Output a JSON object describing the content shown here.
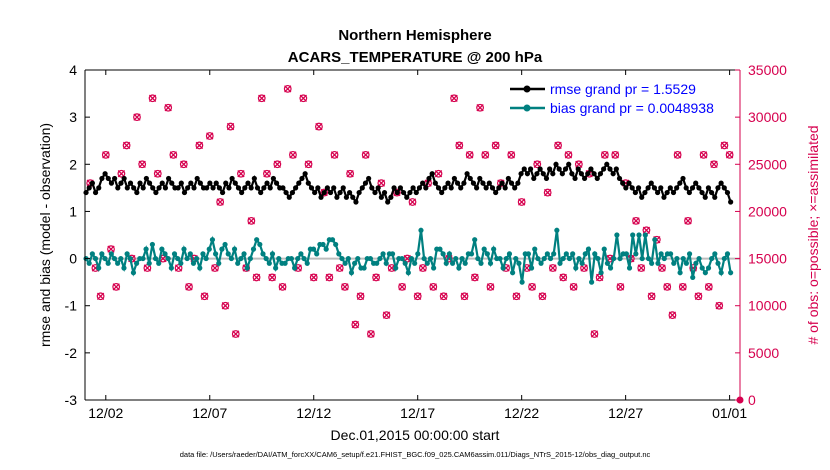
{
  "chart_data": {
    "type": "line",
    "title": "Northern Hemisphere",
    "subtitle": "ACARS_TEMPERATURE @ 200 hPa",
    "xlabel": "Dec.01,2015 00:00:00 start",
    "ylabel_left": "rmse and bias (model - observation)",
    "ylabel_right": "# of obs: o=possible; ×=assimilated",
    "footnote": "data file: /Users/raeder/DAI/ATM_forcXX/CAM6_setup/f.e21.FHIST_BGC.f09_025.CAM6assim.011/Diags_NTrS_2015-12/obs_diag_output.nc",
    "xlim": [
      0,
      31.5
    ],
    "ylim_left": [
      -3,
      4
    ],
    "ylim_right": [
      0,
      35000
    ],
    "x_ticks": [
      {
        "value": 1,
        "label": "12/02"
      },
      {
        "value": 6,
        "label": "12/07"
      },
      {
        "value": 11,
        "label": "12/12"
      },
      {
        "value": 16,
        "label": "12/17"
      },
      {
        "value": 21,
        "label": "12/22"
      },
      {
        "value": 26,
        "label": "12/27"
      },
      {
        "value": 31,
        "label": "01/01"
      }
    ],
    "y_ticks_left": [
      -3,
      -2,
      -1,
      0,
      1,
      2,
      3,
      4
    ],
    "y_tick_labels_left": [
      "-3",
      "-2",
      "-1",
      "0",
      "1",
      "2",
      "3",
      "4"
    ],
    "y_ticks_right": [
      0,
      5000,
      10000,
      15000,
      20000,
      25000,
      30000,
      35000
    ],
    "y_tick_labels_right": [
      "0",
      "5000",
      "10000",
      "15000",
      "20000",
      "25000",
      "30000",
      "35000"
    ],
    "colors": {
      "rmse": "#000000",
      "bias": "#008080",
      "obs": "#d6004e",
      "zero_line": "#bdbdbd"
    },
    "series": [
      {
        "name": "rmse grand pr = 1.5529",
        "axis": "left",
        "color": "#000000",
        "values": [
          1.4,
          1.5,
          1.6,
          1.4,
          1.5,
          1.7,
          1.8,
          1.7,
          1.6,
          1.7,
          1.5,
          1.6,
          1.7,
          1.5,
          1.6,
          1.5,
          1.4,
          1.6,
          1.5,
          1.7,
          1.6,
          1.5,
          1.4,
          1.5,
          1.6,
          1.5,
          1.7,
          1.6,
          1.5,
          1.5,
          1.6,
          1.4,
          1.5,
          1.6,
          1.5,
          1.7,
          1.6,
          1.5,
          1.5,
          1.6,
          1.5,
          1.6,
          1.5,
          1.4,
          1.6,
          1.5,
          1.7,
          1.6,
          1.5,
          1.4,
          1.5,
          1.6,
          1.5,
          1.7,
          1.5,
          1.4,
          1.5,
          1.6,
          1.5,
          1.7,
          1.6,
          1.5,
          1.5,
          1.4,
          1.3,
          1.4,
          1.5,
          1.6,
          1.7,
          1.8,
          1.6,
          1.5,
          1.4,
          1.5,
          1.3,
          1.4,
          1.5,
          1.4,
          1.5,
          1.3,
          1.4,
          1.5,
          1.3,
          1.4,
          1.3,
          1.2,
          1.4,
          1.5,
          1.6,
          1.7,
          1.5,
          1.4,
          1.5,
          1.3,
          1.4,
          1.2,
          1.3,
          1.5,
          1.4,
          1.5,
          1.4,
          1.3,
          1.4,
          1.5,
          1.4,
          1.5,
          1.6,
          1.5,
          1.7,
          1.8,
          1.6,
          1.5,
          1.4,
          1.5,
          1.6,
          1.5,
          1.7,
          1.6,
          1.5,
          1.6,
          1.8,
          1.7,
          1.6,
          1.5,
          1.7,
          1.6,
          1.5,
          1.6,
          1.5,
          1.4,
          1.5,
          1.6,
          1.5,
          1.7,
          1.6,
          1.5,
          1.6,
          1.8,
          1.9,
          1.8,
          1.9,
          1.7,
          1.8,
          1.9,
          1.8,
          1.7,
          1.9,
          1.8,
          2.0,
          1.9,
          1.8,
          1.9,
          2.0,
          1.8,
          1.7,
          1.9,
          1.8,
          1.7,
          1.8,
          1.9,
          1.8,
          1.7,
          1.8,
          1.9,
          2.0,
          1.9,
          1.8,
          1.9,
          1.7,
          1.6,
          1.5,
          1.6,
          1.5,
          1.4,
          1.5,
          1.3,
          1.4,
          1.5,
          1.6,
          1.5,
          1.4,
          1.5,
          1.3,
          1.4,
          1.5,
          1.4,
          1.5,
          1.6,
          1.7,
          1.5,
          1.4,
          1.5,
          1.6,
          1.5,
          1.4,
          1.3,
          1.5,
          1.4,
          1.3,
          1.5,
          1.6,
          1.5,
          1.4,
          1.2
        ]
      },
      {
        "name": "bias grand pr = 0.0048938",
        "axis": "left",
        "color": "#008080",
        "values": [
          0.0,
          -0.1,
          0.1,
          0.0,
          -0.2,
          0.1,
          0.0,
          -0.1,
          0.1,
          0.0,
          -0.1,
          0.0,
          -0.2,
          0.1,
          0.0,
          -0.3,
          -0.1,
          0.0,
          0.0,
          0.2,
          -0.1,
          0.3,
          0.0,
          -0.1,
          0.2,
          0.1,
          0.0,
          -0.2,
          0.1,
          0.0,
          -0.1,
          0.2,
          0.0,
          0.1,
          -0.1,
          0.0,
          -0.2,
          0.1,
          0.0,
          0.2,
          0.4,
          0.1,
          -0.1,
          0.2,
          0.3,
          0.1,
          0.0,
          0.2,
          -0.1,
          0.0,
          0.1,
          -0.2,
          0.0,
          0.2,
          0.4,
          0.3,
          0.1,
          0.0,
          -0.1,
          0.1,
          -0.2,
          0.0,
          -0.1,
          -0.1,
          0.0,
          0.0,
          -0.2,
          0.0,
          0.1,
          0.0,
          -0.1,
          0.2,
          0.2,
          0.1,
          0.3,
          0.3,
          0.2,
          0.4,
          0.4,
          0.3,
          0.1,
          0.0,
          -0.1,
          0.0,
          -0.3,
          -0.1,
          0.0,
          -0.2,
          -0.2,
          0.0,
          0.0,
          -0.1,
          -0.1,
          0.0,
          0.1,
          -0.1,
          0.1,
          0.1,
          -0.2,
          0.0,
          0.0,
          -0.1,
          -0.3,
          0.0,
          -0.1,
          0.1,
          0.6,
          0.0,
          -0.1,
          0.0,
          -0.2,
          0.2,
          0.2,
          0.1,
          -0.1,
          0.1,
          -0.1,
          0.0,
          -0.2,
          0.0,
          -0.1,
          0.1,
          0.1,
          0.4,
          0.0,
          -0.1,
          0.2,
          0.1,
          -0.1,
          0.2,
          0.0,
          0.0,
          -0.2,
          0.0,
          0.1,
          -0.3,
          0.0,
          -0.1,
          -0.5,
          0.1,
          0.1,
          -0.2,
          0.2,
          0.0,
          -0.1,
          0.0,
          0.1,
          0.0,
          0.1,
          0.6,
          -0.1,
          0.0,
          0.1,
          0.0,
          0.1,
          -0.2,
          0.0,
          -0.1,
          0.1,
          0.2,
          -0.5,
          0.1,
          0.0,
          -0.3,
          0.2,
          -0.1,
          -0.2,
          0.0,
          0.5,
          0.0,
          0.1,
          0.1,
          -0.2,
          0.5,
          0.1,
          0.5,
          0.0,
          0.5,
          0.0,
          -0.1,
          0.4,
          -0.1,
          0.1,
          0.0,
          0.1,
          0.1,
          -0.1,
          0.0,
          -0.3,
          0.0,
          -0.1,
          0.1,
          -0.4,
          -0.1,
          0.0,
          -0.2,
          -0.3,
          -0.2,
          0.0,
          0.1,
          -0.1,
          -0.3,
          0.0,
          0.1,
          -0.3
        ]
      },
      {
        "name": "obs possible",
        "axis": "right",
        "color": "#d6004e",
        "marker": "o",
        "x": [
          0.25,
          0.5,
          0.75,
          1.0,
          1.25,
          1.5,
          1.75,
          2.0,
          2.25,
          2.5,
          2.75,
          3.0,
          3.25,
          3.5,
          3.75,
          4.0,
          4.25,
          4.5,
          4.75,
          5.0,
          5.25,
          5.5,
          5.75,
          6.0,
          6.25,
          6.5,
          6.75,
          7.0,
          7.25,
          7.5,
          7.75,
          8.0,
          8.25,
          8.5,
          8.75,
          9.0,
          9.25,
          9.5,
          9.75,
          10.0,
          10.25,
          10.5,
          10.75,
          11.0,
          11.25,
          11.5,
          11.75,
          12.0,
          12.25,
          12.5,
          12.75,
          13.0,
          13.25,
          13.5,
          13.75,
          14.0,
          14.25,
          14.5,
          14.75,
          15.0,
          15.25,
          15.5,
          15.75,
          16.0,
          16.25,
          16.5,
          16.75,
          17.0,
          17.25,
          17.5,
          17.75,
          18.0,
          18.25,
          18.5,
          18.75,
          19.0,
          19.25,
          19.5,
          19.75,
          20.0,
          20.25,
          20.5,
          20.75,
          21.0,
          21.25,
          21.5,
          21.75,
          22.0,
          22.25,
          22.5,
          22.75,
          23.0,
          23.25,
          23.5,
          23.75,
          24.0,
          24.25,
          24.5,
          24.75,
          25.0,
          25.25,
          25.5,
          25.75,
          26.0,
          26.25,
          26.5,
          26.75,
          27.0,
          27.25,
          27.5,
          27.75,
          28.0,
          28.25,
          28.5,
          28.75,
          29.0,
          29.25,
          29.5,
          29.75,
          30.0,
          30.25,
          30.5,
          30.75,
          31.0
        ],
        "values": [
          23000,
          14000,
          11000,
          26000,
          16000,
          12000,
          24000,
          27000,
          15000,
          30000,
          25000,
          14000,
          32000,
          24000,
          15000,
          31000,
          26000,
          14000,
          25000,
          12000,
          15000,
          27000,
          11000,
          28000,
          14000,
          21000,
          10000,
          29000,
          7000,
          24000,
          14000,
          19000,
          13000,
          32000,
          24000,
          13000,
          25000,
          12000,
          33000,
          26000,
          14000,
          32000,
          25000,
          13000,
          29000,
          22000,
          13000,
          26000,
          14000,
          12000,
          24000,
          8000,
          11000,
          26000,
          7000,
          13000,
          23000,
          9000,
          14000,
          22000,
          12000,
          15000,
          21000,
          11000,
          14000,
          23000,
          12000,
          24000,
          11000,
          15000,
          32000,
          27000,
          11000,
          26000,
          13000,
          31000,
          26000,
          12000,
          27000,
          23000,
          14000,
          26000,
          11000,
          21000,
          14000,
          12000,
          25000,
          11000,
          22000,
          14000,
          27000,
          13000,
          26000,
          12000,
          25000,
          14000,
          24000,
          7000,
          13000,
          26000,
          15000,
          26000,
          12000,
          23000,
          15000,
          19000,
          14000,
          18000,
          11000,
          17000,
          14000,
          12000,
          9000,
          26000,
          12000,
          19000,
          14000,
          11000,
          26000,
          12000,
          25000,
          10000,
          27000,
          26000
        ]
      },
      {
        "name": "obs assimilated",
        "axis": "right",
        "color": "#d6004e",
        "marker": "x",
        "x_same_as": "obs possible",
        "values": [
          23000,
          14000,
          11000,
          26000,
          16000,
          12000,
          24000,
          27000,
          15000,
          30000,
          25000,
          14000,
          32000,
          24000,
          15000,
          31000,
          26000,
          14000,
          25000,
          12000,
          15000,
          27000,
          11000,
          28000,
          14000,
          21000,
          10000,
          29000,
          7000,
          24000,
          14000,
          19000,
          13000,
          32000,
          24000,
          13000,
          25000,
          12000,
          33000,
          26000,
          14000,
          32000,
          25000,
          13000,
          29000,
          22000,
          13000,
          26000,
          14000,
          12000,
          24000,
          8000,
          11000,
          26000,
          7000,
          13000,
          23000,
          9000,
          14000,
          22000,
          12000,
          15000,
          21000,
          11000,
          14000,
          23000,
          12000,
          24000,
          11000,
          15000,
          32000,
          27000,
          11000,
          26000,
          13000,
          31000,
          26000,
          12000,
          27000,
          23000,
          14000,
          26000,
          11000,
          21000,
          14000,
          12000,
          25000,
          11000,
          22000,
          14000,
          27000,
          13000,
          26000,
          12000,
          25000,
          14000,
          24000,
          7000,
          13000,
          26000,
          15000,
          26000,
          12000,
          23000,
          15000,
          19000,
          14000,
          18000,
          11000,
          17000,
          14000,
          12000,
          9000,
          26000,
          12000,
          19000,
          14000,
          11000,
          26000,
          12000,
          25000,
          10000,
          27000,
          26000
        ]
      }
    ],
    "legend": {
      "placement": "top-right",
      "entries": [
        "rmse grand pr = 1.5529",
        "bias grand pr = 0.0048938"
      ]
    },
    "extra_point": {
      "x": 31.5,
      "y_right": 0
    }
  }
}
